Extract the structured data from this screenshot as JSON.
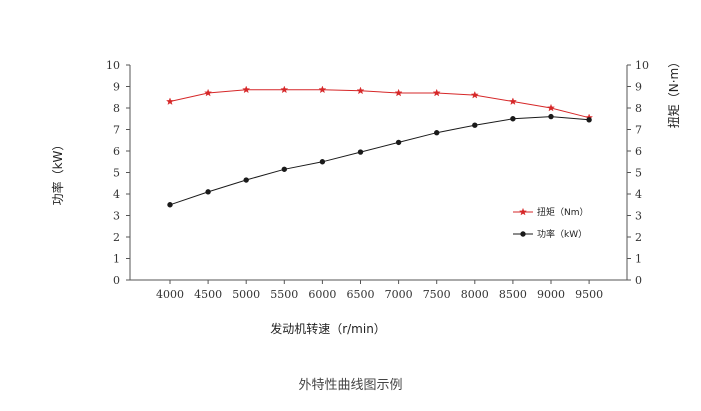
{
  "caption": "外特性曲线图示例",
  "chart_data": {
    "type": "line",
    "title": "",
    "xlabel": "发动机转速（r/min）",
    "ylabel_left": "功率（kW）",
    "ylabel_right": "扭矩（N·m）",
    "categories": [
      "4000",
      "4500",
      "5000",
      "5500",
      "6000",
      "6500",
      "7000",
      "7500",
      "8000",
      "8500",
      "9000",
      "9500"
    ],
    "ylim_left": [
      0,
      10
    ],
    "ylim_right": [
      0,
      10
    ],
    "yticks_left": [
      "0",
      "1",
      "2",
      "3",
      "4",
      "5",
      "6",
      "7",
      "8",
      "9",
      "10"
    ],
    "yticks_right": [
      "0",
      "1",
      "2",
      "3",
      "4",
      "5",
      "6",
      "7",
      "8",
      "9",
      "10"
    ],
    "grid": false,
    "legend_position": "lower-right",
    "series": [
      {
        "name": "扭矩（Nm）",
        "axis": "right",
        "marker": "star",
        "color": "#d62728",
        "values": [
          8.3,
          8.7,
          8.85,
          8.85,
          8.85,
          8.8,
          8.7,
          8.7,
          8.6,
          8.3,
          8.0,
          7.55
        ]
      },
      {
        "name": "功率（kW）",
        "axis": "left",
        "marker": "circle",
        "color": "#1a1a1a",
        "values": [
          3.5,
          4.1,
          4.65,
          5.15,
          5.5,
          5.95,
          6.4,
          6.85,
          7.2,
          7.5,
          7.6,
          7.45
        ]
      }
    ]
  }
}
